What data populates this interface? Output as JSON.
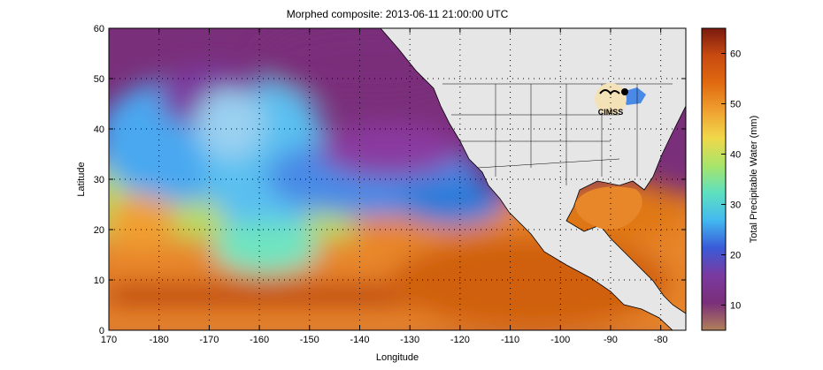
{
  "title": "Morphed composite: 2013-06-11 21:00:00 UTC",
  "map": {
    "xlabel": "Longitude",
    "ylabel": "Latitude",
    "xticks": [
      170,
      -180,
      -170,
      -160,
      -150,
      -140,
      -130,
      -120,
      -110,
      -100,
      -90,
      -80
    ],
    "yticks": [
      0,
      10,
      20,
      30,
      40,
      50,
      60
    ],
    "grid": "dotted",
    "land_color": "#e6e6e6"
  },
  "colorbar": {
    "label": "Total Precipitable Water (mm)",
    "ticks": [
      10,
      20,
      30,
      40,
      50,
      60
    ],
    "range": [
      5,
      65
    ],
    "colormap": [
      "#b0805a",
      "#7a2f7a",
      "#7a3aa0",
      "#3a5ad8",
      "#42b8f0",
      "#5ee0c0",
      "#a8e46a",
      "#f0d84a",
      "#f0a030",
      "#e06a10",
      "#c84a10",
      "#7a1a10"
    ]
  },
  "logo": {
    "text": "CIMSS"
  }
}
